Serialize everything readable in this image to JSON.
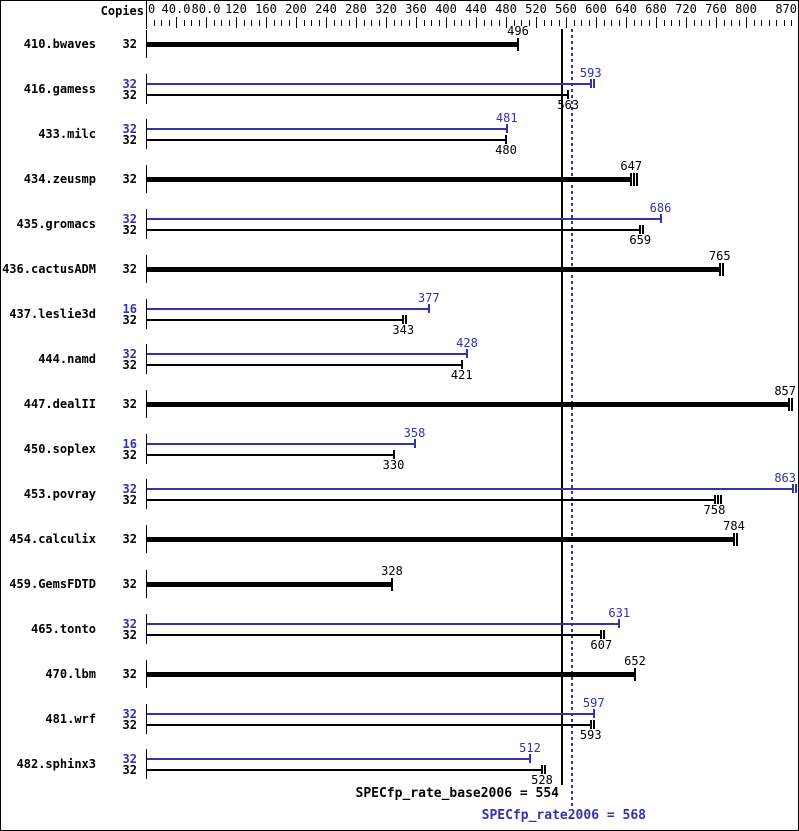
{
  "header": {
    "copies_label": "Copies"
  },
  "colors": {
    "peak": "#3232aa",
    "base": "#000000",
    "background": "#ffffff",
    "border": "#000000"
  },
  "summary": {
    "base_text": "SPECfp_rate_base2006 = 554",
    "base_value": 554,
    "peak_text": "SPECfp_rate2006 = 568",
    "peak_value": 568
  },
  "chart_data": {
    "type": "bar",
    "orientation": "horizontal",
    "xlim": [
      0,
      870
    ],
    "axis_major_step": 40,
    "axis_minor_step": 10,
    "tick_labels": [
      "0",
      "40.0",
      "80.0",
      "120",
      "160",
      "200",
      "240",
      "280",
      "320",
      "360",
      "400",
      "440",
      "480",
      "520",
      "560",
      "600",
      "640",
      "680",
      "720",
      "760",
      "800",
      "870"
    ],
    "legend": "peak bars are blue (top), base bars are black (bottom); thick black bar = base-only result",
    "benchmarks": [
      {
        "name": "410.bwaves",
        "bars": [
          {
            "run": "base",
            "copies": 32,
            "value": 496,
            "thick": true,
            "end_ticks": 1
          }
        ]
      },
      {
        "name": "416.gamess",
        "bars": [
          {
            "run": "peak",
            "copies": 32,
            "value": 593,
            "end_ticks": 2
          },
          {
            "run": "base",
            "copies": 32,
            "value": 563,
            "end_ticks": 1
          }
        ]
      },
      {
        "name": "433.milc",
        "bars": [
          {
            "run": "peak",
            "copies": 32,
            "value": 481,
            "end_ticks": 1
          },
          {
            "run": "base",
            "copies": 32,
            "value": 480,
            "end_ticks": 1
          }
        ]
      },
      {
        "name": "434.zeusmp",
        "bars": [
          {
            "run": "base",
            "copies": 32,
            "value": 647,
            "thick": true,
            "end_ticks": 3
          }
        ]
      },
      {
        "name": "435.gromacs",
        "bars": [
          {
            "run": "peak",
            "copies": 32,
            "value": 686,
            "end_ticks": 1
          },
          {
            "run": "base",
            "copies": 32,
            "value": 659,
            "end_ticks": 2
          }
        ]
      },
      {
        "name": "436.cactusADM",
        "bars": [
          {
            "run": "base",
            "copies": 32,
            "value": 765,
            "thick": true,
            "end_ticks": 2
          }
        ]
      },
      {
        "name": "437.leslie3d",
        "bars": [
          {
            "run": "peak",
            "copies": 16,
            "value": 377,
            "end_ticks": 1
          },
          {
            "run": "base",
            "copies": 32,
            "value": 343,
            "end_ticks": 2
          }
        ]
      },
      {
        "name": "444.namd",
        "bars": [
          {
            "run": "peak",
            "copies": 32,
            "value": 428,
            "end_ticks": 1
          },
          {
            "run": "base",
            "copies": 32,
            "value": 421,
            "end_ticks": 1
          }
        ]
      },
      {
        "name": "447.dealII",
        "bars": [
          {
            "run": "base",
            "copies": 32,
            "value": 857,
            "thick": true,
            "end_ticks": 2
          }
        ]
      },
      {
        "name": "450.soplex",
        "bars": [
          {
            "run": "peak",
            "copies": 16,
            "value": 358,
            "end_ticks": 1
          },
          {
            "run": "base",
            "copies": 32,
            "value": 330,
            "end_ticks": 1
          }
        ]
      },
      {
        "name": "453.povray",
        "bars": [
          {
            "run": "peak",
            "copies": 32,
            "value": 863,
            "end_ticks": 2
          },
          {
            "run": "base",
            "copies": 32,
            "value": 758,
            "end_ticks": 3
          }
        ]
      },
      {
        "name": "454.calculix",
        "bars": [
          {
            "run": "base",
            "copies": 32,
            "value": 784,
            "thick": true,
            "end_ticks": 2
          }
        ]
      },
      {
        "name": "459.GemsFDTD",
        "bars": [
          {
            "run": "base",
            "copies": 32,
            "value": 328,
            "thick": true,
            "end_ticks": 1
          }
        ]
      },
      {
        "name": "465.tonto",
        "bars": [
          {
            "run": "peak",
            "copies": 32,
            "value": 631,
            "end_ticks": 1
          },
          {
            "run": "base",
            "copies": 32,
            "value": 607,
            "end_ticks": 2
          }
        ]
      },
      {
        "name": "470.lbm",
        "bars": [
          {
            "run": "base",
            "copies": 32,
            "value": 652,
            "thick": true,
            "end_ticks": 1
          }
        ]
      },
      {
        "name": "481.wrf",
        "bars": [
          {
            "run": "peak",
            "copies": 32,
            "value": 597,
            "end_ticks": 1
          },
          {
            "run": "base",
            "copies": 32,
            "value": 593,
            "end_ticks": 2
          }
        ]
      },
      {
        "name": "482.sphinx3",
        "bars": [
          {
            "run": "peak",
            "copies": 32,
            "value": 512,
            "end_ticks": 1
          },
          {
            "run": "base",
            "copies": 32,
            "value": 528,
            "end_ticks": 2
          }
        ]
      }
    ],
    "reference_lines": [
      {
        "name": "SPECfp_rate_base2006",
        "value": 554,
        "style": "solid",
        "color": "#000000"
      },
      {
        "name": "SPECfp_rate2006",
        "value": 568,
        "style": "dotted",
        "color": "#3232aa"
      }
    ]
  }
}
